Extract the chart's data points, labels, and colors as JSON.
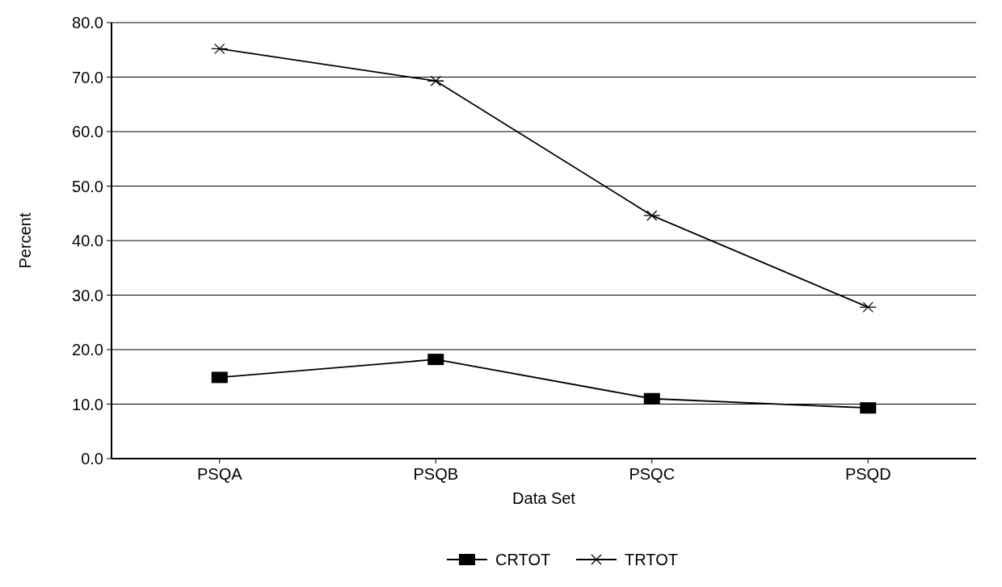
{
  "chart_data": {
    "type": "line",
    "xlabel": "Data Set",
    "ylabel": "Percent",
    "categories": [
      "PSQA",
      "PSQB",
      "PSQC",
      "PSQD"
    ],
    "series": [
      {
        "name": "CRTOT",
        "color": "#000000",
        "marker": "square",
        "values": [
          14.9,
          18.2,
          11.0,
          9.3
        ]
      },
      {
        "name": "TRTOT",
        "color": "#000000",
        "marker": "cross",
        "values": [
          75.2,
          69.3,
          44.6,
          27.8
        ]
      }
    ],
    "ylim": [
      0,
      80
    ],
    "yticks": [
      {
        "value": 0,
        "label": "0.0"
      },
      {
        "value": 10,
        "label": "10.0"
      },
      {
        "value": 20,
        "label": "20.0"
      },
      {
        "value": 30,
        "label": "30.0"
      },
      {
        "value": 40,
        "label": "40.0"
      },
      {
        "value": 50,
        "label": "50.0"
      },
      {
        "value": 60,
        "label": "60.0"
      },
      {
        "value": 70,
        "label": "70.0"
      },
      {
        "value": 80,
        "label": "80.0"
      }
    ],
    "grid": "y",
    "legend": "bottom"
  }
}
